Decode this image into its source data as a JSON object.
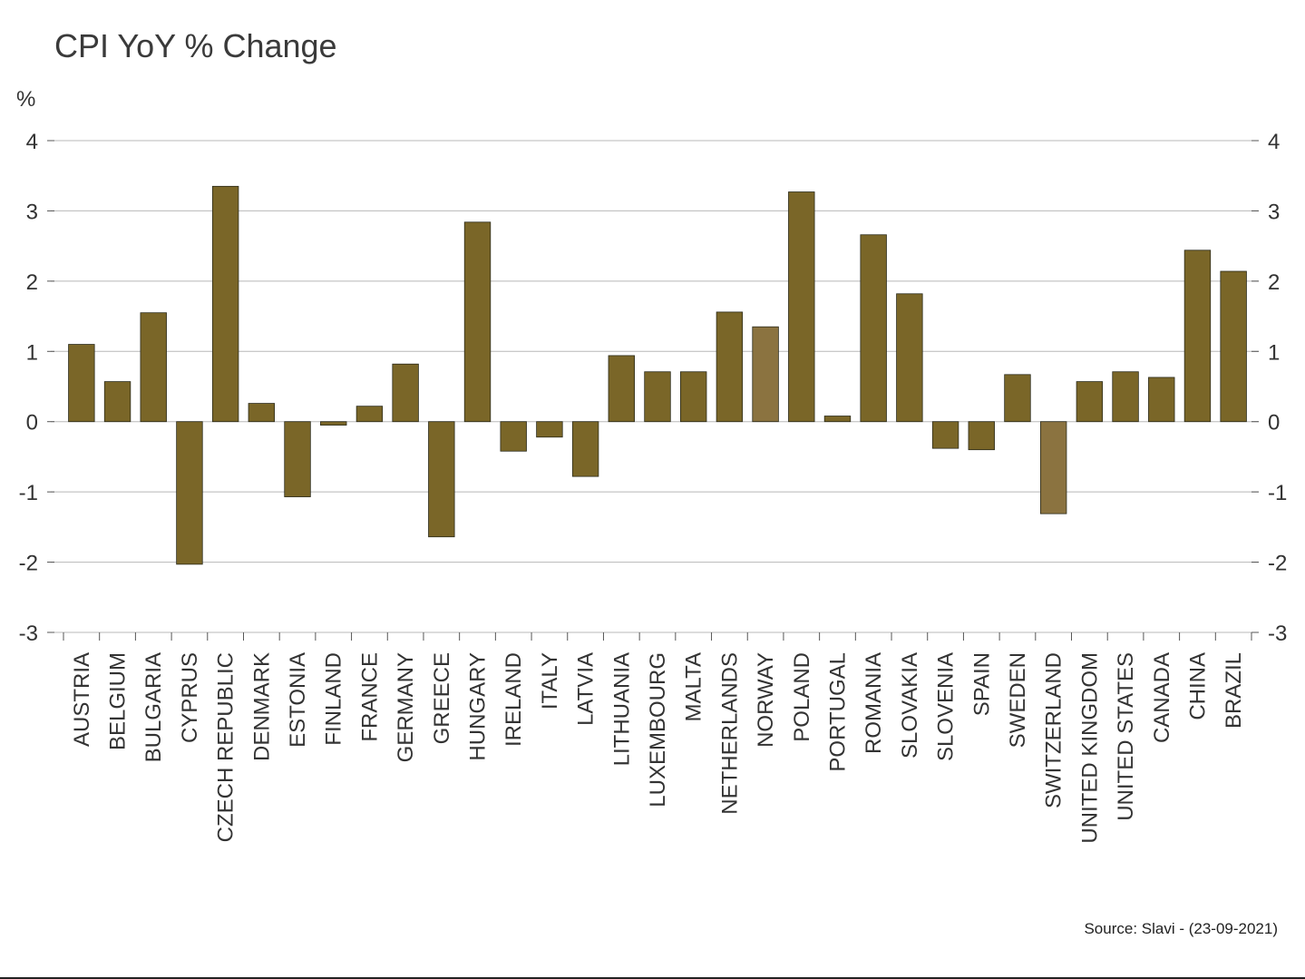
{
  "chart_data": {
    "type": "bar",
    "title": "CPI YoY % Change",
    "ylabel": "%",
    "source": "Source: Slavi - (23-09-2021)",
    "ylim": [
      -3,
      4
    ],
    "yticks": [
      4,
      3,
      2,
      1,
      0,
      -1,
      -2,
      -3
    ],
    "grid": true,
    "secondary_axis": "right (mirrors left)",
    "categories": [
      "AUSTRIA",
      "BELGIUM",
      "BULGARIA",
      "CYPRUS",
      "CZECH REPUBLIC",
      "DENMARK",
      "ESTONIA",
      "FINLAND",
      "FRANCE",
      "GERMANY",
      "GREECE",
      "HUNGARY",
      "IRELAND",
      "ITALY",
      "LATVIA",
      "LITHUANIA",
      "LUXEMBOURG",
      "MALTA",
      "NETHERLANDS",
      "NORWAY",
      "POLAND",
      "PORTUGAL",
      "ROMANIA",
      "SLOVAKIA",
      "SLOVENIA",
      "SPAIN",
      "SWEDEN",
      "SWITZERLAND",
      "UNITED KINGDOM",
      "UNITED STATES",
      "CANADA",
      "CHINA",
      "BRAZIL"
    ],
    "values": [
      1.1,
      0.57,
      1.55,
      -2.03,
      3.35,
      0.26,
      -1.07,
      -0.05,
      0.22,
      0.82,
      -1.64,
      2.84,
      -0.42,
      -0.22,
      -0.78,
      0.94,
      0.71,
      0.71,
      1.56,
      1.35,
      3.27,
      0.08,
      2.66,
      1.82,
      -0.38,
      -0.4,
      0.67,
      -1.31,
      0.57,
      0.71,
      0.63,
      2.44,
      2.14
    ],
    "colors": {
      "default": "#7a6628",
      "highlight": "#8b7340",
      "grid": "#b8b8b8",
      "axis": "#555555"
    },
    "highlighted_categories": [
      "NORWAY",
      "SWITZERLAND"
    ]
  }
}
